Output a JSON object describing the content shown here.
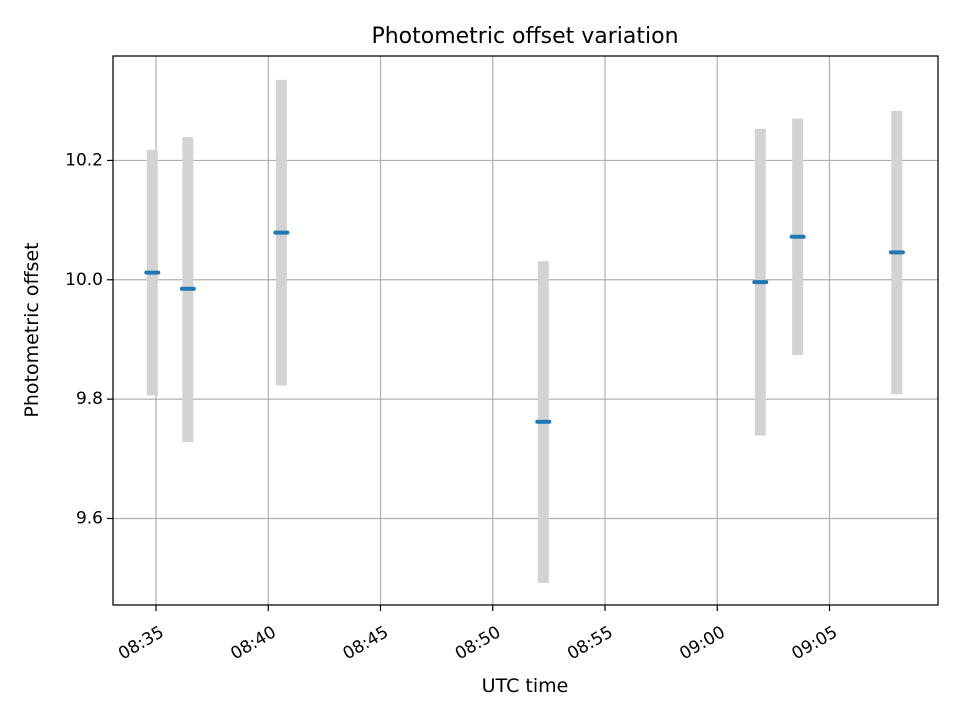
{
  "chart_data": {
    "type": "scatter",
    "title": "Photometric offset variation",
    "xlabel": "UTC time",
    "ylabel": "Photometric offset",
    "xlim": [
      "08:33:05",
      "09:09:50"
    ],
    "ylim": [
      9.455,
      10.375
    ],
    "x_ticks": [
      "08:35",
      "08:40",
      "08:45",
      "08:50",
      "08:55",
      "09:00",
      "09:05"
    ],
    "y_ticks": [
      9.6,
      9.8,
      10.0,
      10.2
    ],
    "y_tick_labels": [
      "9.6",
      "9.8",
      "10.0",
      "10.2"
    ],
    "grid": true,
    "points": [
      {
        "time": "08:34:50",
        "value": 10.012,
        "err_low": 9.806,
        "err_high": 10.218
      },
      {
        "time": "08:36:25",
        "value": 9.985,
        "err_low": 9.728,
        "err_high": 10.239
      },
      {
        "time": "08:40:35",
        "value": 10.079,
        "err_low": 9.823,
        "err_high": 10.335
      },
      {
        "time": "08:52:15",
        "value": 9.762,
        "err_low": 9.492,
        "err_high": 10.031
      },
      {
        "time": "09:01:55",
        "value": 9.996,
        "err_low": 9.739,
        "err_high": 10.253
      },
      {
        "time": "09:03:35",
        "value": 10.072,
        "err_low": 9.874,
        "err_high": 10.27
      },
      {
        "time": "09:08:00",
        "value": 10.046,
        "err_low": 9.808,
        "err_high": 10.283
      }
    ],
    "colors": {
      "point": "#1f77b4",
      "errorbar": "#d3d3d3",
      "grid": "#b0b0b0",
      "axes": "#000000"
    }
  }
}
